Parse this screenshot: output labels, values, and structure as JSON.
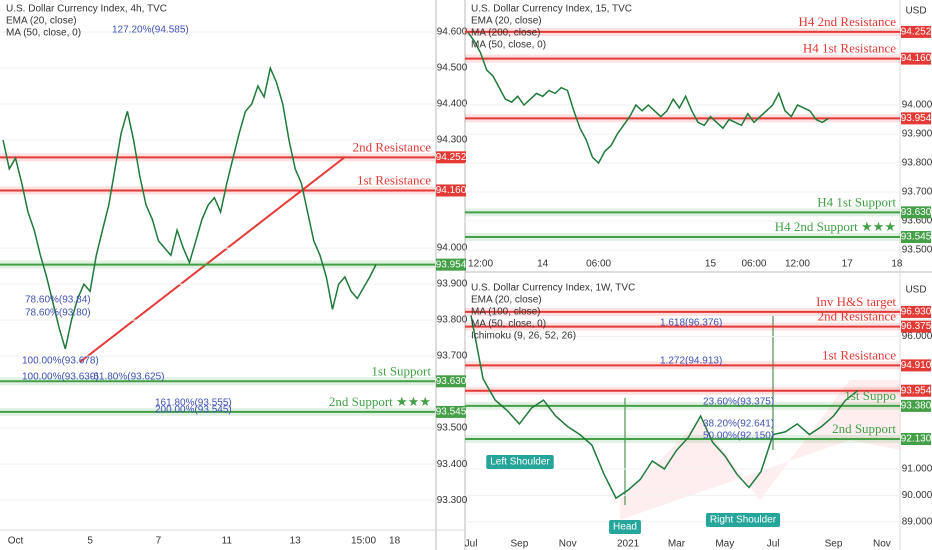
{
  "chart_data": [
    {
      "type": "line",
      "title": "U.S. Dollar Currency Index, 4h, TVC",
      "currency": null,
      "indicators": [
        "EMA (20, close)",
        "MA (50, close, 0)"
      ],
      "categories": [
        null,
        null,
        "Oct",
        null,
        null,
        null,
        null,
        null,
        null,
        null,
        null,
        null,
        null,
        null,
        "5",
        null,
        null,
        null,
        null,
        null,
        null,
        null,
        null,
        null,
        null,
        "7",
        null,
        null,
        null,
        null,
        null,
        null,
        null,
        null,
        null,
        null,
        "11",
        null,
        null,
        null,
        null,
        null,
        null,
        null,
        null,
        null,
        null,
        "13",
        null,
        null,
        null,
        null,
        null,
        null,
        null,
        null,
        null,
        null,
        "15:00",
        null,
        null,
        null,
        null,
        "18",
        null,
        null,
        null,
        null,
        null,
        null
      ],
      "values": [
        94.3,
        94.22,
        94.25,
        94.18,
        94.1,
        94.05,
        93.98,
        93.92,
        93.85,
        93.78,
        93.72,
        93.8,
        93.86,
        93.9,
        93.88,
        93.98,
        94.05,
        94.12,
        94.22,
        94.32,
        94.38,
        94.3,
        94.2,
        94.12,
        94.08,
        94.02,
        94.0,
        93.98,
        94.05,
        94.0,
        93.96,
        94.02,
        94.08,
        94.12,
        94.14,
        94.1,
        94.18,
        94.25,
        94.32,
        94.38,
        94.4,
        94.45,
        94.42,
        94.5,
        94.46,
        94.4,
        94.3,
        94.22,
        94.18,
        94.1,
        94.02,
        93.98,
        93.92,
        93.83,
        93.9,
        93.92,
        93.88,
        93.86,
        93.89,
        93.92,
        93.954,
        null,
        null,
        null,
        null,
        null,
        null,
        null,
        null,
        null
      ],
      "color": "#1f7a3a",
      "ylim": [
        93.217,
        94.689
      ],
      "yticks": [
        {
          "value": 93.3,
          "label": "93.300"
        },
        {
          "value": 93.4,
          "label": "93.400"
        },
        {
          "value": 93.5,
          "label": "93.500"
        },
        {
          "value": 93.7,
          "label": "93.700"
        },
        {
          "value": 93.8,
          "label": "93.800"
        },
        {
          "value": 93.9,
          "label": "93.900"
        },
        {
          "value": 94.0,
          "label": "94.000"
        },
        {
          "value": 94.3,
          "label": "94.300"
        },
        {
          "value": 94.4,
          "label": "94.400"
        },
        {
          "value": 94.5,
          "label": "94.500"
        },
        {
          "value": 94.6,
          "label": "94.600"
        }
      ],
      "levels": [
        {
          "value": 94.252,
          "label": "94.252",
          "text": "2nd Resistance",
          "color": "#e53935"
        },
        {
          "value": 94.16,
          "label": "94.160",
          "text": "1st Resistance",
          "color": "#e53935"
        },
        {
          "value": 93.954,
          "label": "93.954",
          "text": null,
          "color": "#43a047"
        },
        {
          "value": 93.63,
          "label": "93.630",
          "text": "1st Support",
          "color": "#43a047"
        },
        {
          "value": 93.545,
          "label": "93.545",
          "text": "2nd Support ★★★",
          "color": "#43a047"
        }
      ],
      "annotations": [
        "127.20%(94.585)",
        "78.60%(93.84)",
        "78.60%(93.80)",
        "100.00%(93.678)",
        "100.00%(93.630)",
        "-61.80%(93.625)",
        "161.80%(93.555)",
        "200.00%(93.545)"
      ],
      "pattern_labels": []
    },
    {
      "type": "line",
      "title": "U.S. Dollar Currency Index, 15, TVC",
      "currency": "USD",
      "indicators": [
        "EMA (20, close)",
        "MA (200, close)",
        "MA (50, close, 0)"
      ],
      "categories": [
        null,
        null,
        "12:00",
        null,
        null,
        null,
        null,
        null,
        null,
        null,
        null,
        null,
        "14",
        null,
        null,
        null,
        null,
        null,
        null,
        null,
        null,
        "06:00",
        null,
        null,
        null,
        null,
        null,
        null,
        null,
        null,
        null,
        null,
        null,
        null,
        null,
        null,
        null,
        null,
        null,
        "15",
        null,
        null,
        null,
        null,
        null,
        null,
        "06:00",
        null,
        null,
        null,
        null,
        null,
        null,
        "12:00",
        null,
        null,
        null,
        null,
        null,
        null,
        null,
        "17",
        null,
        null,
        null,
        null,
        null,
        null,
        null,
        "18"
      ],
      "values": [
        94.25,
        94.22,
        94.18,
        94.12,
        94.1,
        94.06,
        94.02,
        94.01,
        94.03,
        94.0,
        94.02,
        94.04,
        94.03,
        94.05,
        94.04,
        94.06,
        94.05,
        93.98,
        93.92,
        93.88,
        93.82,
        93.8,
        93.84,
        93.86,
        93.9,
        93.93,
        93.96,
        94.0,
        93.98,
        94.0,
        93.98,
        93.96,
        93.98,
        94.02,
        93.99,
        94.03,
        93.98,
        93.94,
        93.93,
        93.96,
        93.94,
        93.92,
        93.95,
        93.94,
        93.93,
        93.97,
        93.94,
        93.96,
        93.98,
        94.0,
        94.04,
        93.98,
        93.96,
        94.0,
        93.99,
        93.98,
        93.95,
        93.94,
        93.954,
        null,
        null,
        null,
        null,
        null,
        null,
        null,
        null,
        null,
        null,
        null
      ],
      "color": "#1f7a3a",
      "ylim": [
        93.483,
        94.362
      ],
      "yticks": [
        {
          "value": 93.5,
          "label": "93.500"
        },
        {
          "value": 93.6,
          "label": "93.600"
        },
        {
          "value": 93.7,
          "label": "93.700"
        },
        {
          "value": 93.8,
          "label": "93.800"
        },
        {
          "value": 93.9,
          "label": "93.900"
        },
        {
          "value": 94.0,
          "label": "94.000"
        }
      ],
      "levels": [
        {
          "value": 94.252,
          "label": "94.252",
          "text": "H4 2nd Resistance",
          "color": "#e53935"
        },
        {
          "value": 94.16,
          "label": "94.160",
          "text": "H4 1st Resistance",
          "color": "#e53935"
        },
        {
          "value": 93.954,
          "label": "93.954",
          "text": null,
          "color": "#e53935"
        },
        {
          "value": 93.63,
          "label": "93.630",
          "text": "H4 1st Support",
          "color": "#43a047"
        },
        {
          "value": 93.545,
          "label": "93.545",
          "text": "H4 2nd Support ★★★",
          "color": "#43a047"
        }
      ],
      "annotations": [],
      "pattern_labels": []
    },
    {
      "type": "line",
      "title": "U.S. Dollar Currency Index, 1W, TVC",
      "currency": "USD",
      "indicators": [
        "EMA (20, close)",
        "MA (100, close)",
        "MA (50, close, 0)",
        "Ichimoku (9, 26, 52, 26)"
      ],
      "categories": [
        "Jul",
        null,
        null,
        null,
        "Sep",
        null,
        null,
        null,
        "Nov",
        null,
        null,
        null,
        null,
        "2021",
        null,
        null,
        null,
        "Mar",
        null,
        null,
        null,
        "May",
        null,
        null,
        null,
        "Jul",
        null,
        null,
        null,
        null,
        "Sep",
        null,
        null,
        null,
        "Nov",
        null
      ],
      "values": [
        96.8,
        94.4,
        93.6,
        93.2,
        92.7,
        93.3,
        93.6,
        93.0,
        92.6,
        92.3,
        91.9,
        90.8,
        89.9,
        90.2,
        90.6,
        91.3,
        91.0,
        91.7,
        92.2,
        93.0,
        92.0,
        91.5,
        90.8,
        90.3,
        90.9,
        92.3,
        92.4,
        92.7,
        92.3,
        92.6,
        93.0,
        93.6,
        93.954,
        null,
        null,
        null
      ],
      "color": "#1f7a3a",
      "ylim": [
        88.43,
        98.21
      ],
      "yticks": [
        {
          "value": 89,
          "label": "89.000"
        },
        {
          "value": 90,
          "label": "90.000"
        },
        {
          "value": 91,
          "label": "91.000"
        },
        {
          "value": 96,
          "label": "96.000"
        }
      ],
      "levels": [
        {
          "value": 96.93,
          "label": "96.930",
          "text": "Inv H&S target",
          "color": "#e53935"
        },
        {
          "value": 96.375,
          "label": "96.375",
          "text": "2nd Resistance",
          "color": "#e53935"
        },
        {
          "value": 94.91,
          "label": "94.910",
          "text": "1st Resistance",
          "color": "#e53935"
        },
        {
          "value": 93.954,
          "label": "93.954",
          "text": null,
          "color": "#e53935"
        },
        {
          "value": 93.38,
          "label": "93.380",
          "text": "1st Suppo",
          "color": "#43a047"
        },
        {
          "value": 92.13,
          "label": "92.130",
          "text": "2nd Support",
          "color": "#43a047"
        }
      ],
      "annotations": [
        "1.618(96.376)",
        "1.272(94.913)",
        "23.60%(93.375)",
        "38.20%(92.641)",
        "50.00%(92.150)"
      ],
      "pattern_labels": [
        "Left Shoulder",
        "Head",
        "Right Shoulder"
      ]
    }
  ]
}
